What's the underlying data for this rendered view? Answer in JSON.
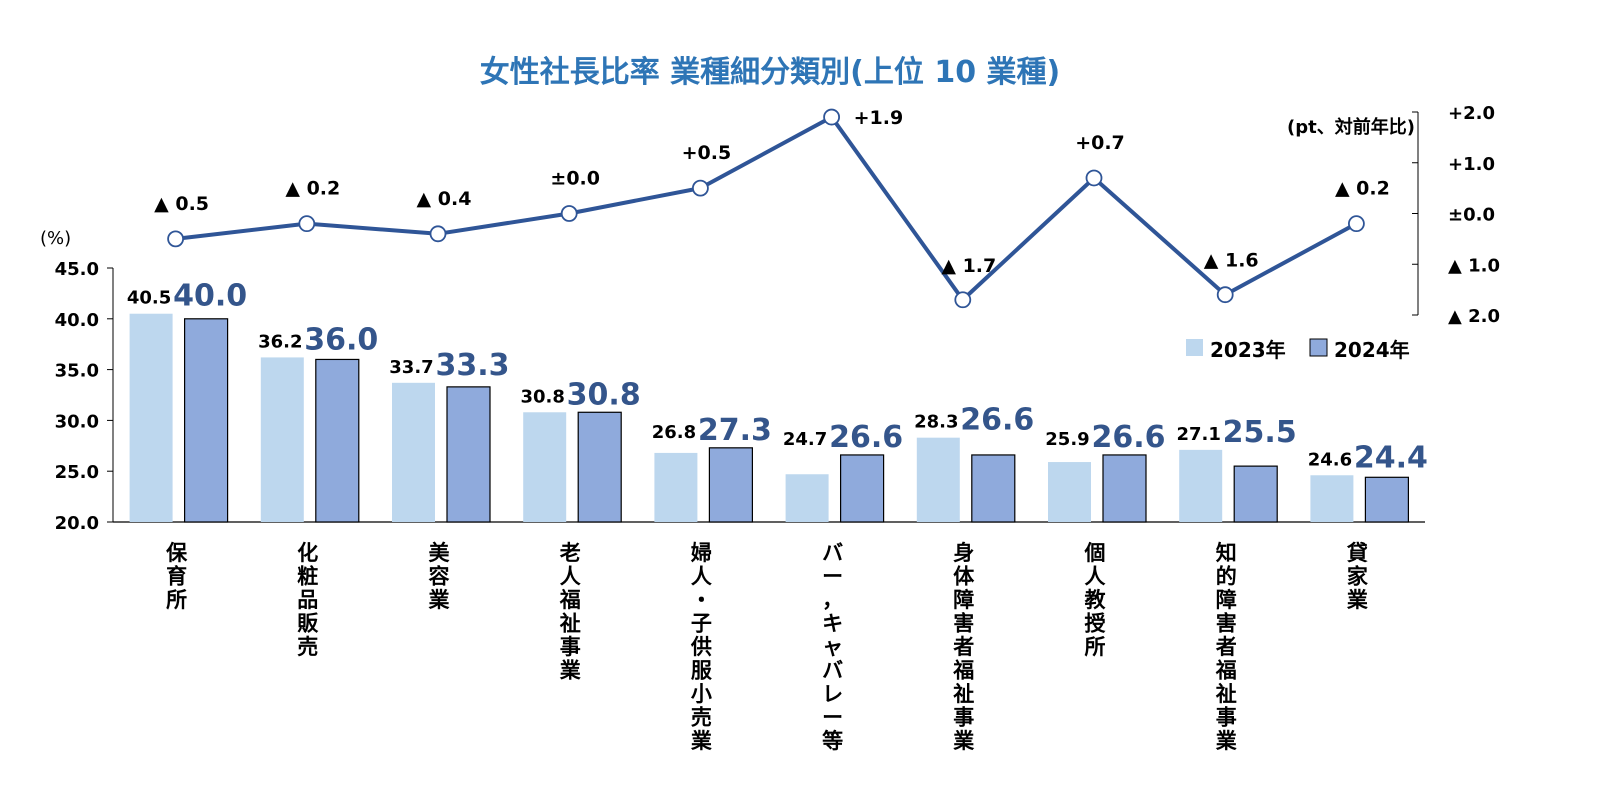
{
  "chart_data": {
    "type": "bar+line",
    "title": "女性社長比率 業種細分類別(上位 10 業種)",
    "left_axis_unit": "(%)",
    "right_axis_unit": "(pt、対前年比)",
    "ylim": [
      20,
      45
    ],
    "y_ticks": [
      "45.0",
      "40.0",
      "35.0",
      "30.0",
      "25.0",
      "20.0"
    ],
    "y2lim": [
      -2,
      2
    ],
    "y2_ticks": [
      "+2.0",
      "+1.0",
      "±0.0",
      "▲ 1.0",
      "▲ 2.0"
    ],
    "legend_position": "right-middle",
    "grid": false,
    "categories": [
      "保育所",
      "化粧品販売",
      "美容業",
      "老人福祉事業",
      "婦人・子供服小売業",
      "バー，キャバレー等",
      "身体障害者福祉事業",
      "個人教授所",
      "知的障害者福祉事業",
      "貸家業"
    ],
    "series": [
      {
        "name": "2023年",
        "color": "#bdd7ee",
        "values": [
          40.5,
          36.2,
          33.7,
          30.8,
          26.8,
          24.7,
          28.3,
          25.9,
          27.1,
          24.6
        ],
        "labels": [
          "40.5",
          "36.2",
          "33.7",
          "30.8",
          "26.8",
          "24.7",
          "28.3",
          "25.9",
          "27.1",
          "24.6"
        ]
      },
      {
        "name": "2024年",
        "color": "#8faadc",
        "values": [
          40.0,
          36.0,
          33.3,
          30.8,
          27.3,
          26.6,
          26.6,
          26.6,
          25.5,
          24.4
        ],
        "labels": [
          "40.0",
          "36.0",
          "33.3",
          "30.8",
          "27.3",
          "26.6",
          "26.6",
          "26.6",
          "25.5",
          "24.4"
        ]
      }
    ],
    "change": {
      "color": "#2f5597",
      "values": [
        -0.5,
        -0.2,
        -0.4,
        0.0,
        0.5,
        1.9,
        -1.7,
        0.7,
        -1.6,
        -0.2
      ],
      "labels": [
        "▲ 0.5",
        "▲ 0.2",
        "▲ 0.4",
        "±0.0",
        "+0.5",
        "+1.9",
        "▲ 1.7",
        "+0.7",
        "▲ 1.6",
        "▲ 0.2"
      ]
    }
  }
}
